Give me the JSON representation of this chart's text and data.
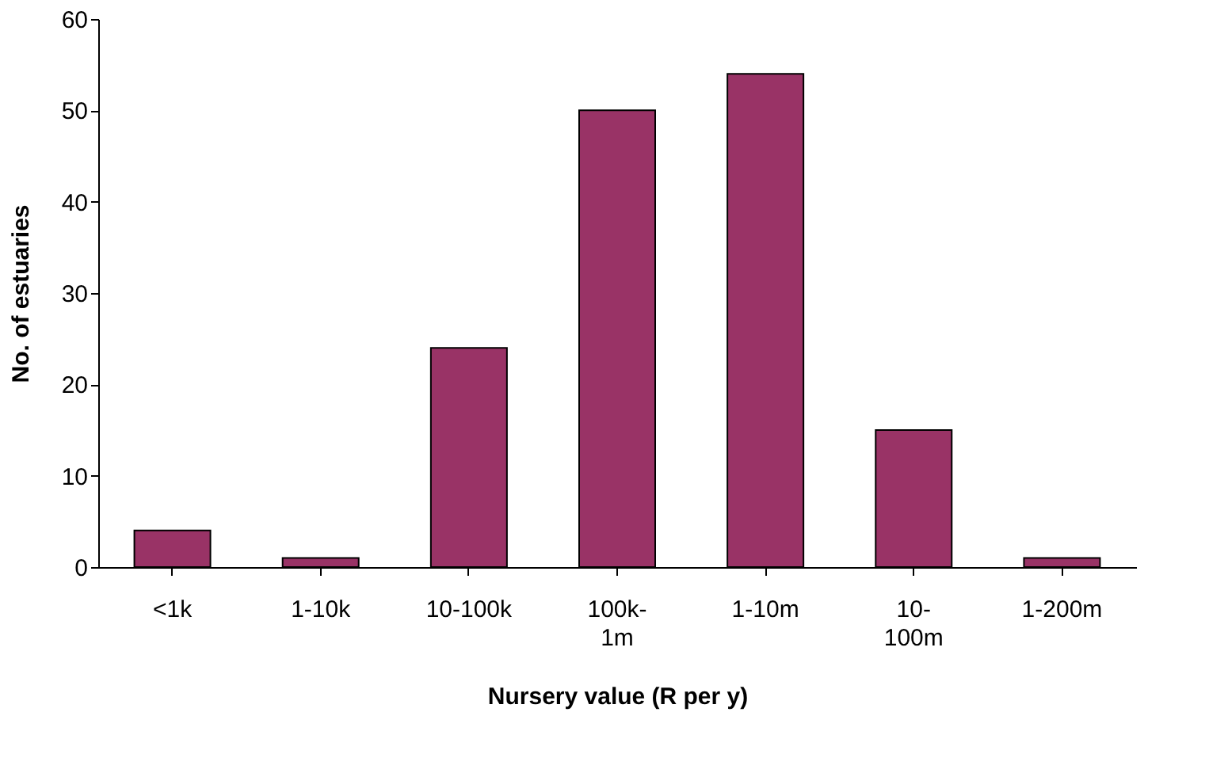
{
  "chart_data": {
    "type": "bar",
    "xlabel": "Nursery value (R per y)",
    "ylabel": "No. of estuaries",
    "categories": [
      "<1k",
      "1-10k",
      "10-100k",
      "100k-\n1m",
      "1-10m",
      "10-\n100m",
      "1-200m"
    ],
    "values": [
      4,
      1,
      24,
      50,
      54,
      15,
      1
    ],
    "color": "#993366",
    "ylim": [
      0,
      60
    ],
    "yticks": [
      0,
      10,
      20,
      30,
      40,
      50,
      60
    ],
    "grid": false
  }
}
